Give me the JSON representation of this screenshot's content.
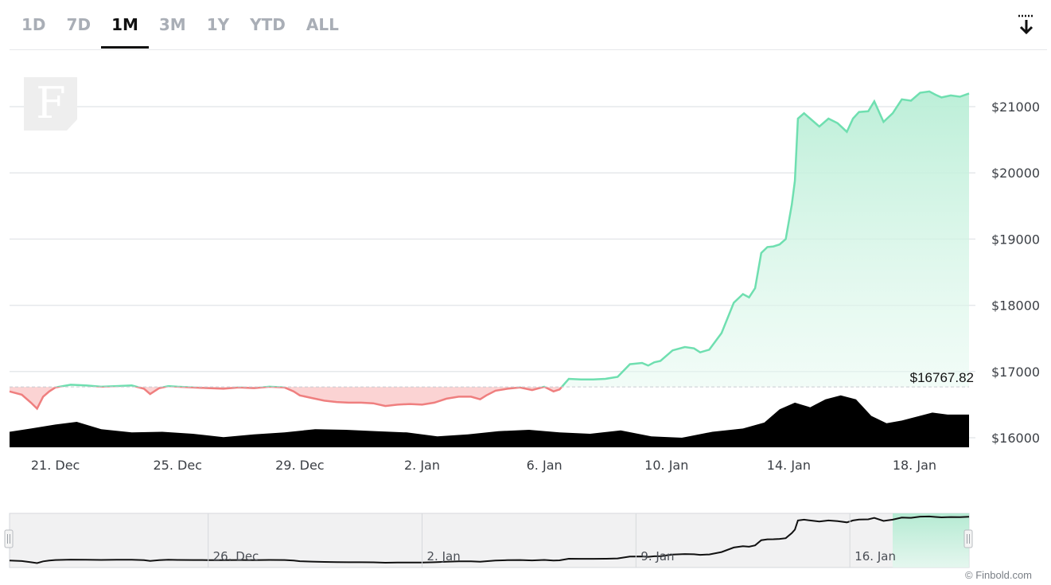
{
  "range_tabs": [
    {
      "label": "1D",
      "active": false
    },
    {
      "label": "7D",
      "active": false
    },
    {
      "label": "1M",
      "active": true
    },
    {
      "label": "3M",
      "active": false
    },
    {
      "label": "1Y",
      "active": false
    },
    {
      "label": "YTD",
      "active": false
    },
    {
      "label": "ALL",
      "active": false
    }
  ],
  "toolbar": {
    "download_icon": "download-arrow-icon"
  },
  "logo": {
    "text": "F"
  },
  "credit": "© Finbold.com",
  "colors": {
    "up_line": "#6fdfb0",
    "up_fill": "#c8f2df",
    "down_line": "#ef7f7f",
    "down_fill": "#fbd3d3",
    "volume": "#000000",
    "grid": "#e6e8eb",
    "tab_active": "#111111",
    "tab_inactive": "#a9aeb6"
  },
  "chart_data": {
    "type": "area",
    "title": "",
    "xlabel": "",
    "ylabel": "",
    "baseline": {
      "value": 16767.82,
      "label": "$16767.82"
    },
    "ylim": [
      15800,
      21500
    ],
    "y_ticks": [
      {
        "value": 16000,
        "label": "$16000"
      },
      {
        "value": 17000,
        "label": "$17000"
      },
      {
        "value": 18000,
        "label": "$18000"
      },
      {
        "value": 19000,
        "label": "$19000"
      },
      {
        "value": 20000,
        "label": "$20000"
      },
      {
        "value": 21000,
        "label": "$21000"
      }
    ],
    "x_domain": [
      -1.5,
      29.9
    ],
    "x_ticks": [
      {
        "value": 0,
        "label": "21. Dec"
      },
      {
        "value": 4,
        "label": "25. Dec"
      },
      {
        "value": 8,
        "label": "29. Dec"
      },
      {
        "value": 12,
        "label": "2. Jan"
      },
      {
        "value": 16,
        "label": "6. Jan"
      },
      {
        "value": 20,
        "label": "10. Jan"
      },
      {
        "value": 24,
        "label": "14. Jan"
      },
      {
        "value": 28,
        "label": "18. Jan"
      }
    ],
    "price": {
      "x": [
        -1.5,
        -1.1,
        -0.8,
        -0.6,
        -0.4,
        -0.2,
        0,
        0.5,
        1,
        1.5,
        2,
        2.5,
        2.9,
        3.1,
        3.4,
        3.7,
        4,
        4.5,
        5,
        5.5,
        6,
        6.5,
        7,
        7.5,
        7.8,
        8,
        8.4,
        8.8,
        9.2,
        9.6,
        10,
        10.4,
        10.8,
        11.2,
        11.6,
        12,
        12.4,
        12.8,
        13.2,
        13.6,
        13.9,
        14.1,
        14.4,
        14.8,
        15.2,
        15.6,
        16,
        16.3,
        16.5,
        16.8,
        17.2,
        17.6,
        18,
        18.4,
        18.8,
        19.2,
        19.4,
        19.6,
        19.8,
        20.2,
        20.6,
        20.9,
        21.1,
        21.4,
        21.8,
        22.2,
        22.5,
        22.7,
        22.9,
        23.1,
        23.3,
        23.5,
        23.7,
        23.9,
        24.1,
        24.2,
        24.3,
        24.5,
        24.7,
        25.0,
        25.3,
        25.6,
        25.9,
        26.1,
        26.3,
        26.6,
        26.8,
        27.1,
        27.4,
        27.7,
        28.0,
        28.3,
        28.6,
        28.8,
        29.0,
        29.3,
        29.6,
        29.9
      ],
      "y": [
        16700,
        16650,
        16530,
        16440,
        16620,
        16700,
        16760,
        16800,
        16790,
        16770,
        16780,
        16790,
        16740,
        16660,
        16750,
        16780,
        16770,
        16760,
        16750,
        16740,
        16760,
        16750,
        16770,
        16760,
        16700,
        16640,
        16600,
        16560,
        16540,
        16530,
        16530,
        16520,
        16480,
        16500,
        16510,
        16500,
        16530,
        16590,
        16620,
        16620,
        16580,
        16640,
        16710,
        16740,
        16760,
        16720,
        16770,
        16700,
        16730,
        16890,
        16880,
        16880,
        16890,
        16920,
        17110,
        17130,
        17090,
        17140,
        17160,
        17320,
        17370,
        17350,
        17290,
        17330,
        17580,
        18040,
        18170,
        18120,
        18260,
        18790,
        18880,
        18890,
        18920,
        19000,
        19520,
        19880,
        20820,
        20900,
        20820,
        20700,
        20820,
        20750,
        20620,
        20820,
        20920,
        20930,
        21080,
        20770,
        20900,
        21110,
        21090,
        21210,
        21230,
        21180,
        21140,
        21170,
        21150,
        21200
      ]
    },
    "volume": {
      "x": [
        -1.5,
        -0.8,
        0,
        0.7,
        1.5,
        2.5,
        3.5,
        4.5,
        5.5,
        6.5,
        7.5,
        8.5,
        9.5,
        10.5,
        11.5,
        12.5,
        13.5,
        14.5,
        15.5,
        16.5,
        17.5,
        18.5,
        19.5,
        20.5,
        21.5,
        22.5,
        23.2,
        23.7,
        24.2,
        24.7,
        25.2,
        25.7,
        26.2,
        26.7,
        27.2,
        27.7,
        28.2,
        28.7,
        29.2,
        29.9
      ],
      "y": [
        16090,
        16140,
        16200,
        16240,
        16130,
        16080,
        16090,
        16060,
        16010,
        16050,
        16080,
        16130,
        16120,
        16100,
        16080,
        16020,
        16050,
        16100,
        16120,
        16080,
        16060,
        16110,
        16020,
        16000,
        16090,
        16140,
        16230,
        16430,
        16530,
        16460,
        16580,
        16640,
        16580,
        16330,
        16220,
        16260,
        16320,
        16380,
        16350,
        16350
      ]
    }
  },
  "navigator": {
    "labels": [
      {
        "value": 5,
        "label": "26. Dec"
      },
      {
        "value": 12,
        "label": "2. Jan"
      },
      {
        "value": 19,
        "label": "9. Jan"
      },
      {
        "value": 26,
        "label": "16. Jan"
      }
    ]
  }
}
